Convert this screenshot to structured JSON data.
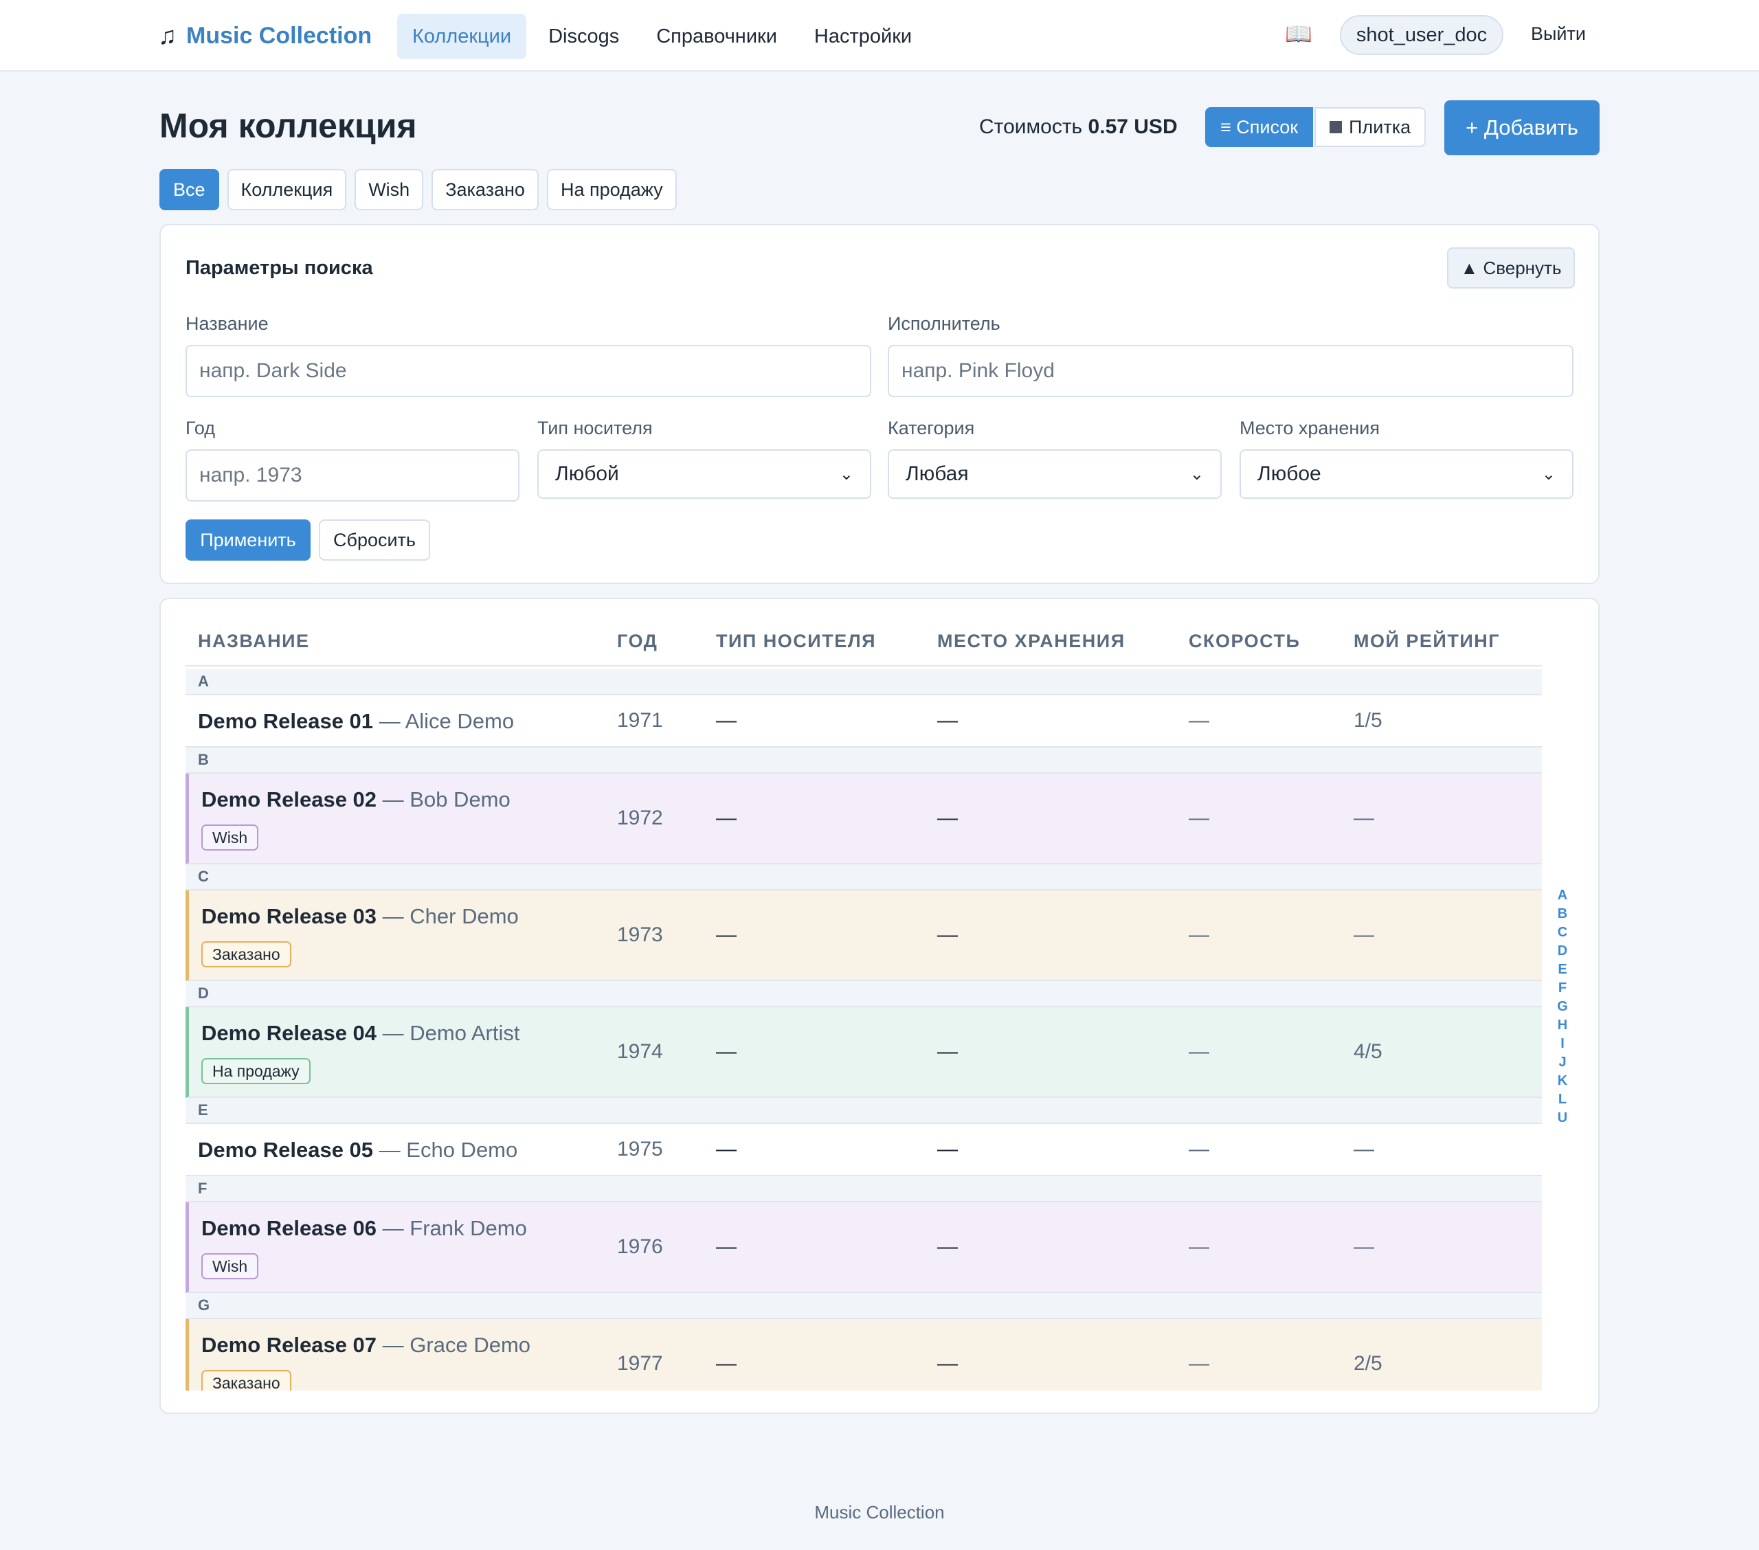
{
  "app": {
    "brand": "Music Collection",
    "brand_icon": "♫",
    "nav": [
      "Коллекции",
      "Discogs",
      "Справочники",
      "Настройки"
    ],
    "active_nav": "Коллекции",
    "help_icon": "📖",
    "user": "shot_user_doc",
    "logout": "Выйти"
  },
  "page": {
    "title": "Моя коллекция",
    "cost_label": "Стоимость",
    "cost_value": "0.57 USD",
    "view_list": "≡ Список",
    "view_tiles": "Плитка",
    "add": "+ Добавить",
    "filters": [
      "Все",
      "Коллекция",
      "Wish",
      "Заказано",
      "На продажу"
    ],
    "active_filter": "Все"
  },
  "search": {
    "title": "Параметры поиска",
    "collapse": "▲ Свернуть",
    "name_label": "Название",
    "name_placeholder": "напр. Dark Side",
    "artist_label": "Исполнитель",
    "artist_placeholder": "напр. Pink Floyd",
    "year_label": "Год",
    "year_placeholder": "напр. 1973",
    "media_label": "Тип носителя",
    "media_value": "Любой",
    "category_label": "Категория",
    "category_value": "Любая",
    "storage_label": "Место хранения",
    "storage_value": "Любое",
    "apply": "Применить",
    "reset": "Сбросить"
  },
  "table": {
    "headers": [
      "НАЗВАНИЕ",
      "ГОД",
      "ТИП НОСИТЕЛЯ",
      "МЕСТО ХРАНЕНИЯ",
      "СКОРОСТЬ",
      "МОЙ РЕЙТИНГ"
    ],
    "groups": [
      {
        "letter": "A",
        "title": "Demo Release 01",
        "artist": "— Alice Demo",
        "year": "1971",
        "media": "—",
        "storage": "—",
        "speed": "—",
        "rating": "1/5",
        "status": "",
        "badge": ""
      },
      {
        "letter": "B",
        "title": "Demo Release 02",
        "artist": "— Bob Demo",
        "year": "1972",
        "media": "—",
        "storage": "—",
        "speed": "—",
        "rating": "—",
        "status": "wish",
        "badge": "Wish"
      },
      {
        "letter": "C",
        "title": "Demo Release 03",
        "artist": "— Cher Demo",
        "year": "1973",
        "media": "—",
        "storage": "—",
        "speed": "—",
        "rating": "—",
        "status": "ordered",
        "badge": "Заказано"
      },
      {
        "letter": "D",
        "title": "Demo Release 04",
        "artist": "— Demo Artist",
        "year": "1974",
        "media": "—",
        "storage": "—",
        "speed": "—",
        "rating": "4/5",
        "status": "sale",
        "badge": "На продажу"
      },
      {
        "letter": "E",
        "title": "Demo Release 05",
        "artist": "— Echo Demo",
        "year": "1975",
        "media": "—",
        "storage": "—",
        "speed": "—",
        "rating": "—",
        "status": "",
        "badge": ""
      },
      {
        "letter": "F",
        "title": "Demo Release 06",
        "artist": "— Frank Demo",
        "year": "1976",
        "media": "—",
        "storage": "—",
        "speed": "—",
        "rating": "—",
        "status": "wish",
        "badge": "Wish"
      },
      {
        "letter": "G",
        "title": "Demo Release 07",
        "artist": "— Grace Demo",
        "year": "1977",
        "media": "—",
        "storage": "—",
        "speed": "—",
        "rating": "2/5",
        "status": "ordered",
        "badge": "Заказано"
      }
    ]
  },
  "alpha_index": [
    "A",
    "B",
    "C",
    "D",
    "E",
    "F",
    "G",
    "H",
    "I",
    "J",
    "K",
    "L",
    "U"
  ],
  "footer": "Music Collection",
  "colors": {
    "accent": "#3b8ad6",
    "wish_row": "#f3eefa",
    "ordered_row": "#f9f2e6",
    "sale_row": "#e9f5f1"
  }
}
